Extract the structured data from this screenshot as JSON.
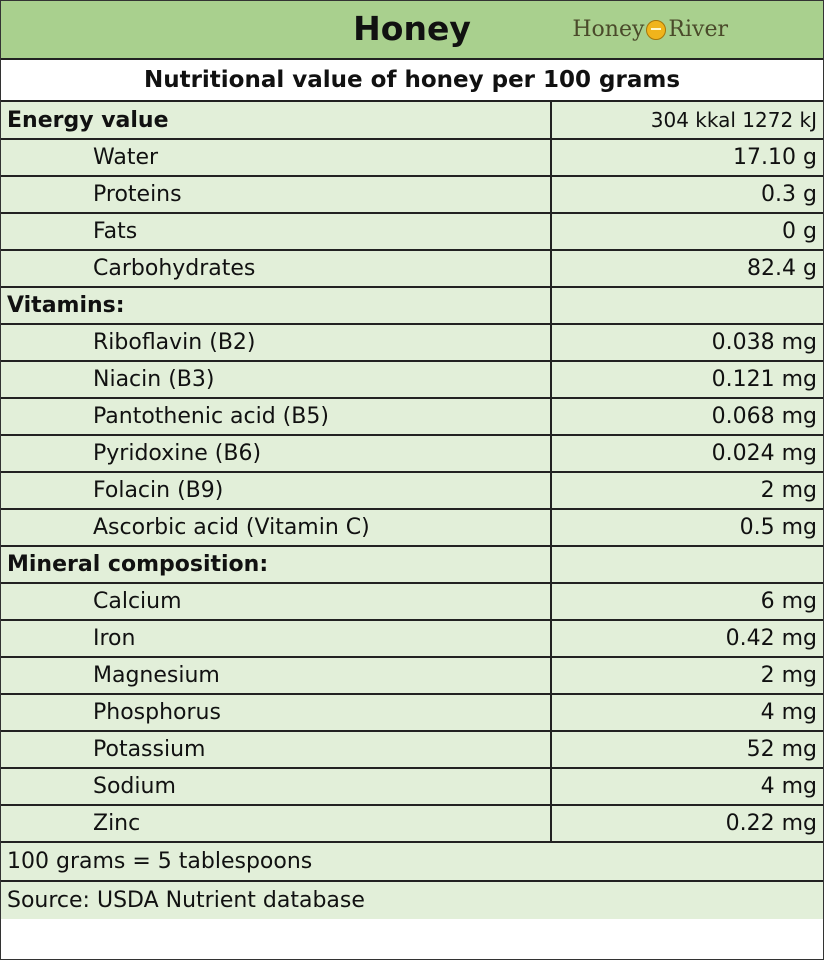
{
  "header": {
    "title": "Honey",
    "brand": {
      "left": "Honey",
      "right": "River",
      "logo_icon": "honey-drop-icon"
    },
    "subtitle": "Nutritional value of honey per 100 grams"
  },
  "rows": [
    {
      "type": "section",
      "label": "Energy value",
      "value": "304 kkal 1272 kJ"
    },
    {
      "type": "item",
      "label": "Water",
      "value": "17.10 g"
    },
    {
      "type": "item",
      "label": "Proteins",
      "value": "0.3 g"
    },
    {
      "type": "item",
      "label": "Fats",
      "value": "0 g"
    },
    {
      "type": "item",
      "label": "Carbohydrates",
      "value": "82.4 g"
    },
    {
      "type": "section",
      "label": "Vitamins:",
      "value": ""
    },
    {
      "type": "item",
      "label": "Riboflavin (B2)",
      "value": "0.038 mg"
    },
    {
      "type": "item",
      "label": "Niacin (B3)",
      "value": "0.121 mg"
    },
    {
      "type": "item",
      "label": "Pantothenic acid (B5)",
      "value": "0.068 mg"
    },
    {
      "type": "item",
      "label": "Pyridoxine (B6)",
      "value": "0.024 mg"
    },
    {
      "type": "item",
      "label": "Folacin (B9)",
      "value": "2 mg"
    },
    {
      "type": "item",
      "label": "Ascorbic acid (Vitamin C)",
      "value": "0.5 mg"
    },
    {
      "type": "section",
      "label": "Mineral composition:",
      "value": ""
    },
    {
      "type": "item",
      "label": "Calcium",
      "value": "6 mg"
    },
    {
      "type": "item",
      "label": "Iron",
      "value": "0.42 mg"
    },
    {
      "type": "item",
      "label": "Magnesium",
      "value": "2 mg"
    },
    {
      "type": "item",
      "label": "Phosphorus",
      "value": "4 mg"
    },
    {
      "type": "item",
      "label": "Potassium",
      "value": "52 mg"
    },
    {
      "type": "item",
      "label": "Sodium",
      "value": "4 mg"
    },
    {
      "type": "item",
      "label": "Zinc",
      "value": "0.22 mg"
    }
  ],
  "footer": {
    "note": "100 grams = 5 tablespoons",
    "source": "Source: USDA Nutrient database"
  },
  "colors": {
    "header_bg": "#a9d08e",
    "row_bg": "#e2efd9",
    "border": "#222222"
  }
}
